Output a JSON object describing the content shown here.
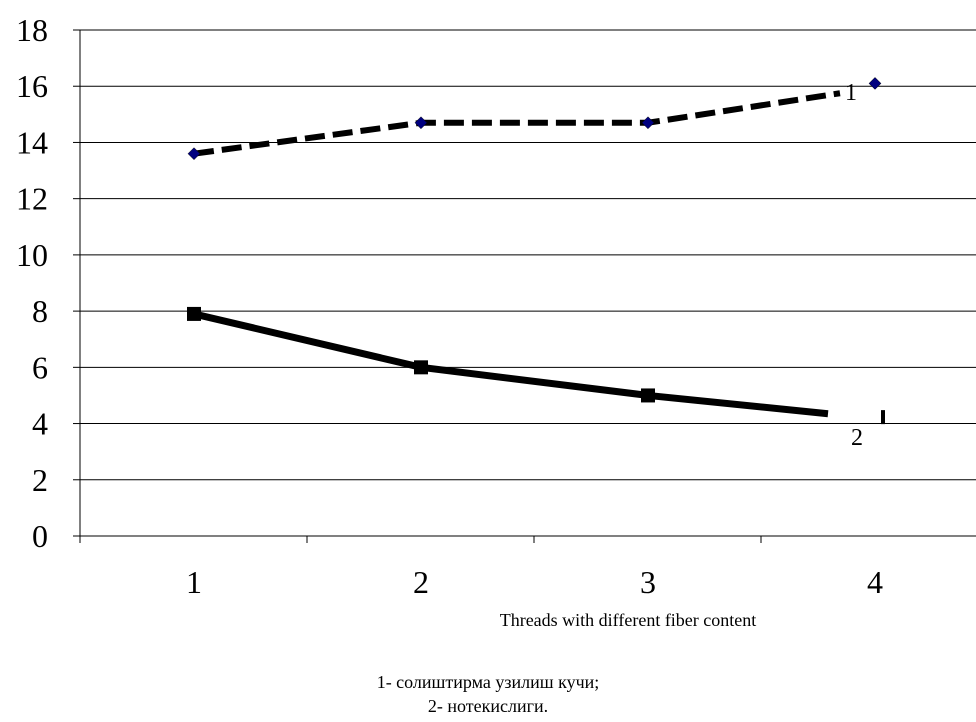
{
  "chart_data": {
    "type": "line",
    "categories": [
      "1",
      "2",
      "3",
      "4"
    ],
    "xlabel": "Threads with different fiber content",
    "ylabel": "",
    "ylim": [
      0,
      18
    ],
    "yticks": [
      0,
      2,
      4,
      6,
      8,
      10,
      12,
      14,
      16,
      18
    ],
    "grid": "horizontal",
    "series": [
      {
        "label": "1",
        "values": [
          13.6,
          14.7,
          14.7,
          16.1
        ],
        "color": "#000000",
        "marker_color": "#000080",
        "line_style": "dashed",
        "marker": "diamond"
      },
      {
        "label": "2",
        "values": [
          7.9,
          6.0,
          5.0,
          4.3
        ],
        "color": "#000000",
        "line_style": "solid",
        "marker": "square"
      }
    ],
    "legend": [
      "1- солиштирма узилиш кучи;",
      "2- нотекислиги."
    ]
  }
}
